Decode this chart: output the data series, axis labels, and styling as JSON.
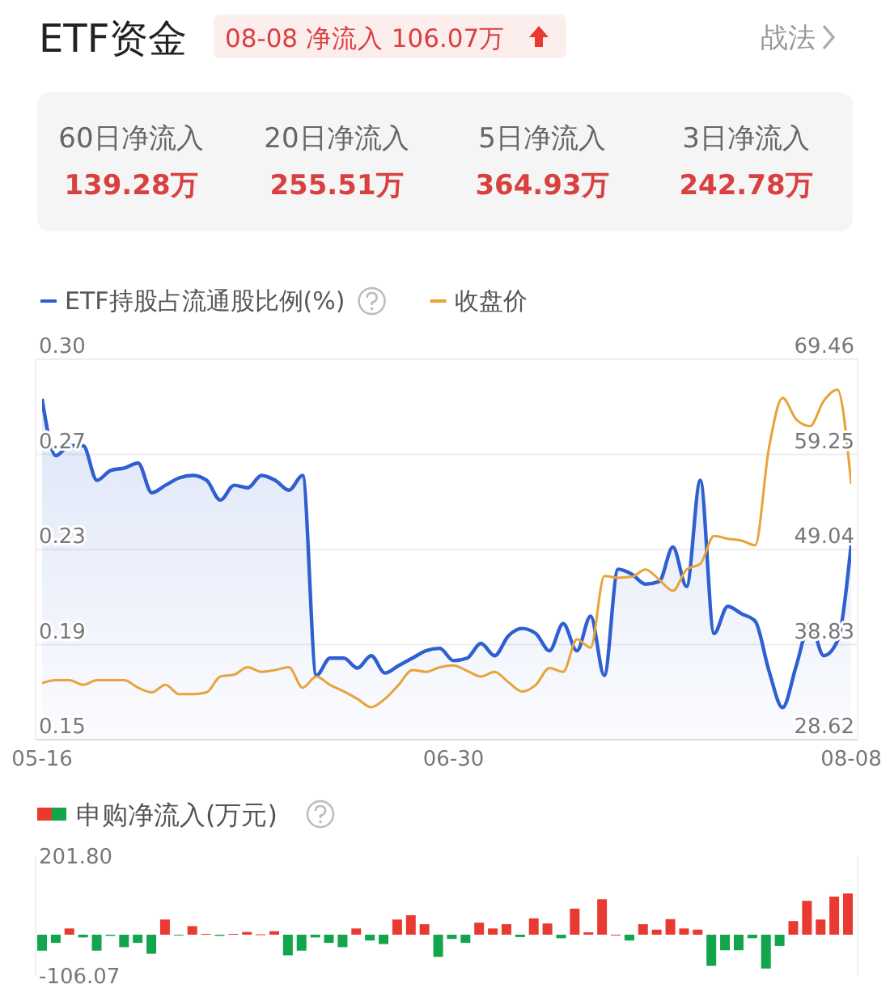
{
  "chart_data": [
    {
      "type": "other",
      "title": "ETF资金",
      "annotations": [
        "08-08 净流入 106.07万",
        "战法",
        "60日净流入",
        "139.28万",
        "20日净流入",
        "255.51万",
        "5日净流入",
        "364.93万",
        "3日净流入",
        "242.78万"
      ]
    },
    {
      "type": "line",
      "categories": [
        "05-16",
        null,
        null,
        null,
        null,
        null,
        null,
        null,
        null,
        null,
        null,
        null,
        null,
        null,
        null,
        null,
        null,
        null,
        null,
        null,
        null,
        null,
        null,
        null,
        null,
        null,
        null,
        null,
        null,
        null,
        "06-30",
        null,
        null,
        null,
        null,
        null,
        null,
        null,
        null,
        null,
        null,
        null,
        null,
        null,
        null,
        null,
        null,
        null,
        null,
        null,
        null,
        null,
        null,
        null,
        null,
        null,
        null,
        null,
        null,
        "08-08"
      ],
      "series": [
        {
          "name": "ETF持股占流通股比例(%)",
          "type": "area",
          "color": "#2f5fd0",
          "values": [
            0.288,
            0.265,
            0.269,
            0.269,
            0.255,
            0.259,
            0.26,
            0.262,
            0.25,
            0.253,
            0.256,
            0.257,
            0.255,
            0.247,
            0.253,
            0.252,
            0.257,
            0.255,
            0.251,
            0.257,
            0.176,
            0.183,
            0.183,
            0.179,
            0.184,
            0.177,
            0.18,
            0.183,
            0.186,
            0.187,
            0.182,
            0.183,
            0.189,
            0.184,
            0.192,
            0.195,
            0.193,
            0.186,
            0.197,
            0.186,
            0.2,
            0.176,
            0.219,
            0.217,
            0.213,
            0.214,
            0.228,
            0.212,
            0.255,
            0.193,
            0.204,
            0.201,
            0.198,
            0.178,
            0.163,
            0.18,
            0.197,
            0.184,
            0.19,
            0.229
          ]
        },
        {
          "name": "收盘价",
          "type": "line",
          "axis": "y2",
          "color": "#e8a33a",
          "values": [
            34.7,
            35.0,
            35.0,
            34.5,
            35.0,
            35.0,
            35.0,
            34.2,
            33.7,
            34.5,
            33.5,
            33.5,
            33.7,
            35.4,
            35.6,
            36.4,
            35.9,
            36.1,
            36.4,
            34.2,
            35.4,
            34.5,
            33.8,
            33.0,
            32.1,
            33.0,
            34.5,
            36.1,
            35.9,
            36.4,
            36.6,
            36.0,
            35.4,
            35.9,
            34.8,
            33.8,
            34.5,
            36.3,
            35.9,
            39.4,
            38.5,
            46.2,
            46.0,
            46.1,
            46.9,
            45.8,
            44.6,
            46.9,
            47.5,
            50.5,
            50.2,
            50.0,
            49.5,
            59.9,
            65.3,
            63.0,
            62.3,
            65.0,
            66.2,
            56.1
          ]
        }
      ],
      "ylim": [
        0.15,
        0.304
      ],
      "yticks": [
        {
          "value": 0.15,
          "label": "0.15"
        },
        {
          "value": 0.1885,
          "label": "0.19"
        },
        {
          "value": 0.227,
          "label": "0.23"
        },
        {
          "value": 0.2655,
          "label": "0.27"
        },
        {
          "value": 0.304,
          "label": "0.30"
        }
      ],
      "y2lim": [
        28.62,
        69.46
      ],
      "y2ticks": [
        28.62,
        38.83,
        49.04,
        59.25,
        69.46
      ],
      "grid": "y",
      "legend": "top left"
    },
    {
      "type": "bar",
      "title": "申购净流入(万元)",
      "categories": [
        null,
        null,
        null,
        null,
        null,
        null,
        null,
        null,
        null,
        null,
        null,
        null,
        null,
        null,
        null,
        null,
        null,
        null,
        null,
        null,
        null,
        null,
        null,
        null,
        null,
        null,
        null,
        null,
        null,
        null,
        null,
        null,
        null,
        null,
        null,
        null,
        null,
        null,
        null,
        null,
        null,
        null,
        null,
        null,
        null,
        null,
        null,
        null,
        null,
        null,
        null,
        null,
        null,
        null,
        null,
        null,
        null,
        null,
        null,
        null
      ],
      "values": [
        -41,
        -21,
        16,
        -7,
        -41,
        -3,
        -32,
        -21,
        -49,
        39,
        -2,
        22,
        2,
        -3,
        2,
        7,
        1,
        9,
        -53,
        -41,
        -7,
        -21,
        -32,
        16,
        -15,
        -24,
        39,
        50,
        27,
        -57,
        -11,
        -21,
        31,
        16,
        27,
        -6,
        42,
        29,
        -9,
        67,
        6,
        91,
        0,
        -15,
        27,
        13,
        40,
        16,
        13,
        -80,
        -40,
        -40,
        -9,
        -87,
        -29,
        35,
        87,
        39,
        98,
        106.07
      ],
      "colors": [
        "#13a54b",
        "#13a54b",
        "#e93a32",
        "#13a54b",
        "#13a54b",
        "#13a54b",
        "#13a54b",
        "#13a54b",
        "#13a54b",
        "#e93a32",
        "#13a54b",
        "#e93a32",
        "#e93a32",
        "#13a54b",
        "#e93a32",
        "#e93a32",
        "#e93a32",
        "#e93a32",
        "#13a54b",
        "#13a54b",
        "#13a54b",
        "#13a54b",
        "#13a54b",
        "#e93a32",
        "#13a54b",
        "#13a54b",
        "#e93a32",
        "#e93a32",
        "#e93a32",
        "#13a54b",
        "#13a54b",
        "#13a54b",
        "#e93a32",
        "#e93a32",
        "#e93a32",
        "#13a54b",
        "#e93a32",
        "#e93a32",
        "#13a54b",
        "#e93a32",
        "#e93a32",
        "#e93a32",
        "#e93a32",
        "#13a54b",
        "#e93a32",
        "#e93a32",
        "#e93a32",
        "#e93a32",
        "#e93a32",
        "#13a54b",
        "#13a54b",
        "#13a54b",
        "#13a54b",
        "#13a54b",
        "#13a54b",
        "#e93a32",
        "#e93a32",
        "#e93a32",
        "#e93a32",
        "#e93a32"
      ],
      "ylim": [
        -106.07,
        201.8
      ],
      "yticks": [
        {
          "value": -106.07,
          "label": "-106.07"
        },
        {
          "value": 201.8,
          "label": "201.80"
        }
      ],
      "tick_labels": "y"
    }
  ]
}
